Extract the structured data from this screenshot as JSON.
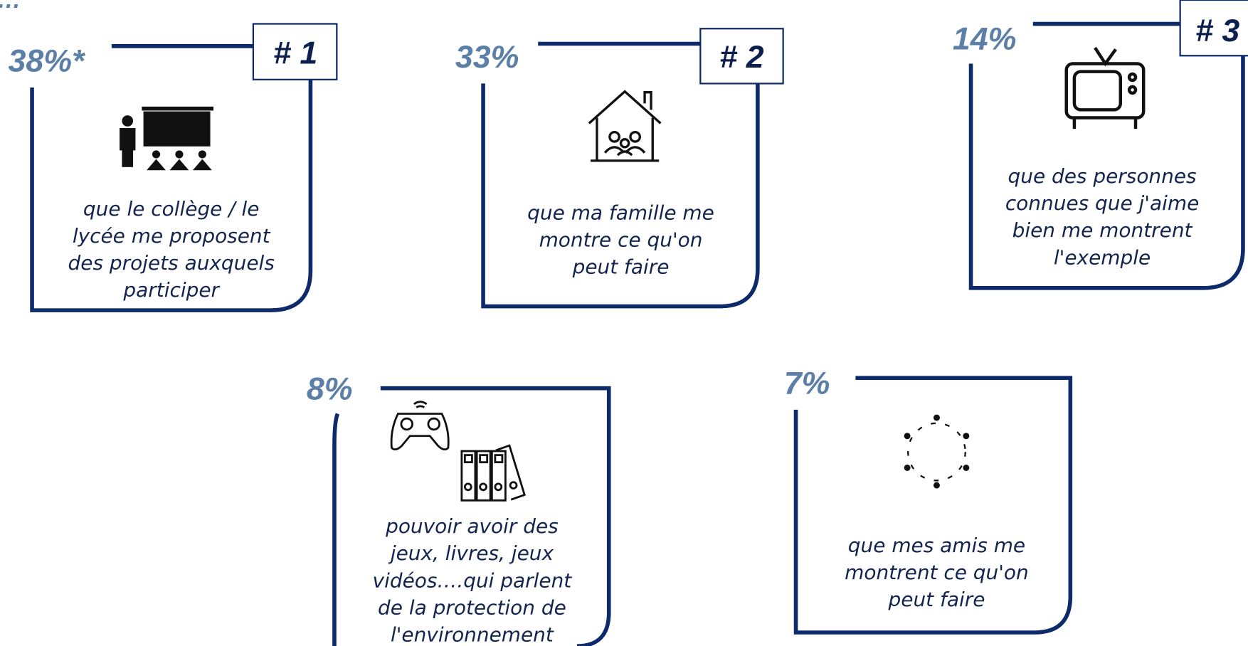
{
  "lead": "…",
  "cards": [
    {
      "percent": "38%*",
      "rank": "# 1",
      "text": [
        "que le collège / le",
        "lycée me proposent",
        "des projets auxquels",
        "participer"
      ]
    },
    {
      "percent": "33%",
      "rank": "# 2",
      "text": [
        "que ma famille me",
        "montre ce qu'on",
        "peut faire"
      ]
    },
    {
      "percent": "14%",
      "rank": "# 3",
      "text": [
        "que des personnes",
        "connues que j'aime",
        "bien me montrent",
        "l'exemple"
      ]
    },
    {
      "percent": "8%",
      "text": [
        "pouvoir avoir des",
        "jeux, livres, jeux",
        "vidéos….qui parlent",
        "de la protection de",
        "l'environnement"
      ]
    },
    {
      "percent": "7%",
      "text": [
        "que mes amis me",
        "montrent ce qu'on",
        "peut faire"
      ]
    }
  ]
}
